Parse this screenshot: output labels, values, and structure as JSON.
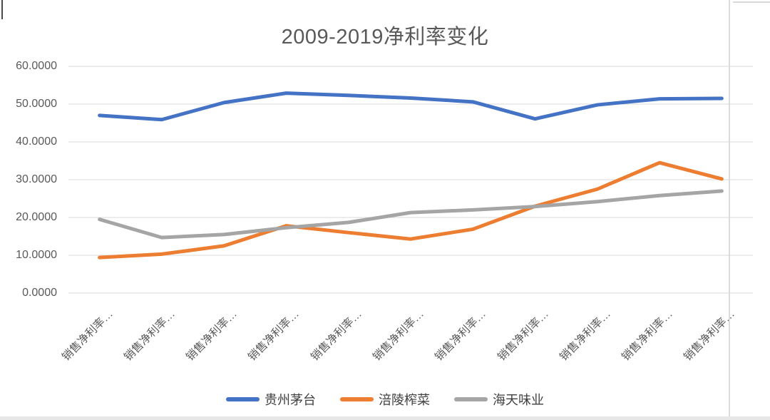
{
  "title": "2009-2019净利率变化",
  "chart_data": {
    "type": "line",
    "title": "2009-2019净利率变化",
    "categories": [
      "销售净利率…",
      "销售净利率…",
      "销售净利率…",
      "销售净利率…",
      "销售净利率…",
      "销售净利率…",
      "销售净利率…",
      "销售净利率…",
      "销售净利率…",
      "销售净利率…",
      "销售净利率…"
    ],
    "series": [
      {
        "name": "贵州茅台",
        "color": "#4472C4",
        "values": [
          47.0,
          45.9,
          50.4,
          52.9,
          52.3,
          51.6,
          50.6,
          46.1,
          49.8,
          51.4,
          51.5
        ]
      },
      {
        "name": "涪陵榨菜",
        "color": "#ED7D31",
        "values": [
          9.4,
          10.3,
          12.5,
          17.8,
          16.0,
          14.3,
          16.9,
          23.0,
          27.5,
          34.5,
          30.2
        ]
      },
      {
        "name": "海天味业",
        "color": "#A5A5A5",
        "values": [
          19.5,
          14.7,
          15.5,
          17.3,
          18.7,
          21.3,
          22.0,
          22.9,
          24.2,
          25.8,
          27.0
        ]
      }
    ],
    "ylim": [
      0,
      60
    ],
    "y_tick_step": 10,
    "y_tick_labels": [
      "60.0000",
      "50.0000",
      "40.0000",
      "30.0000",
      "20.0000",
      "10.0000",
      "0.0000"
    ],
    "grid": true,
    "gridline_color": "#D9D9D9",
    "axis_text_color": "#595959",
    "legend_position": "bottom"
  }
}
